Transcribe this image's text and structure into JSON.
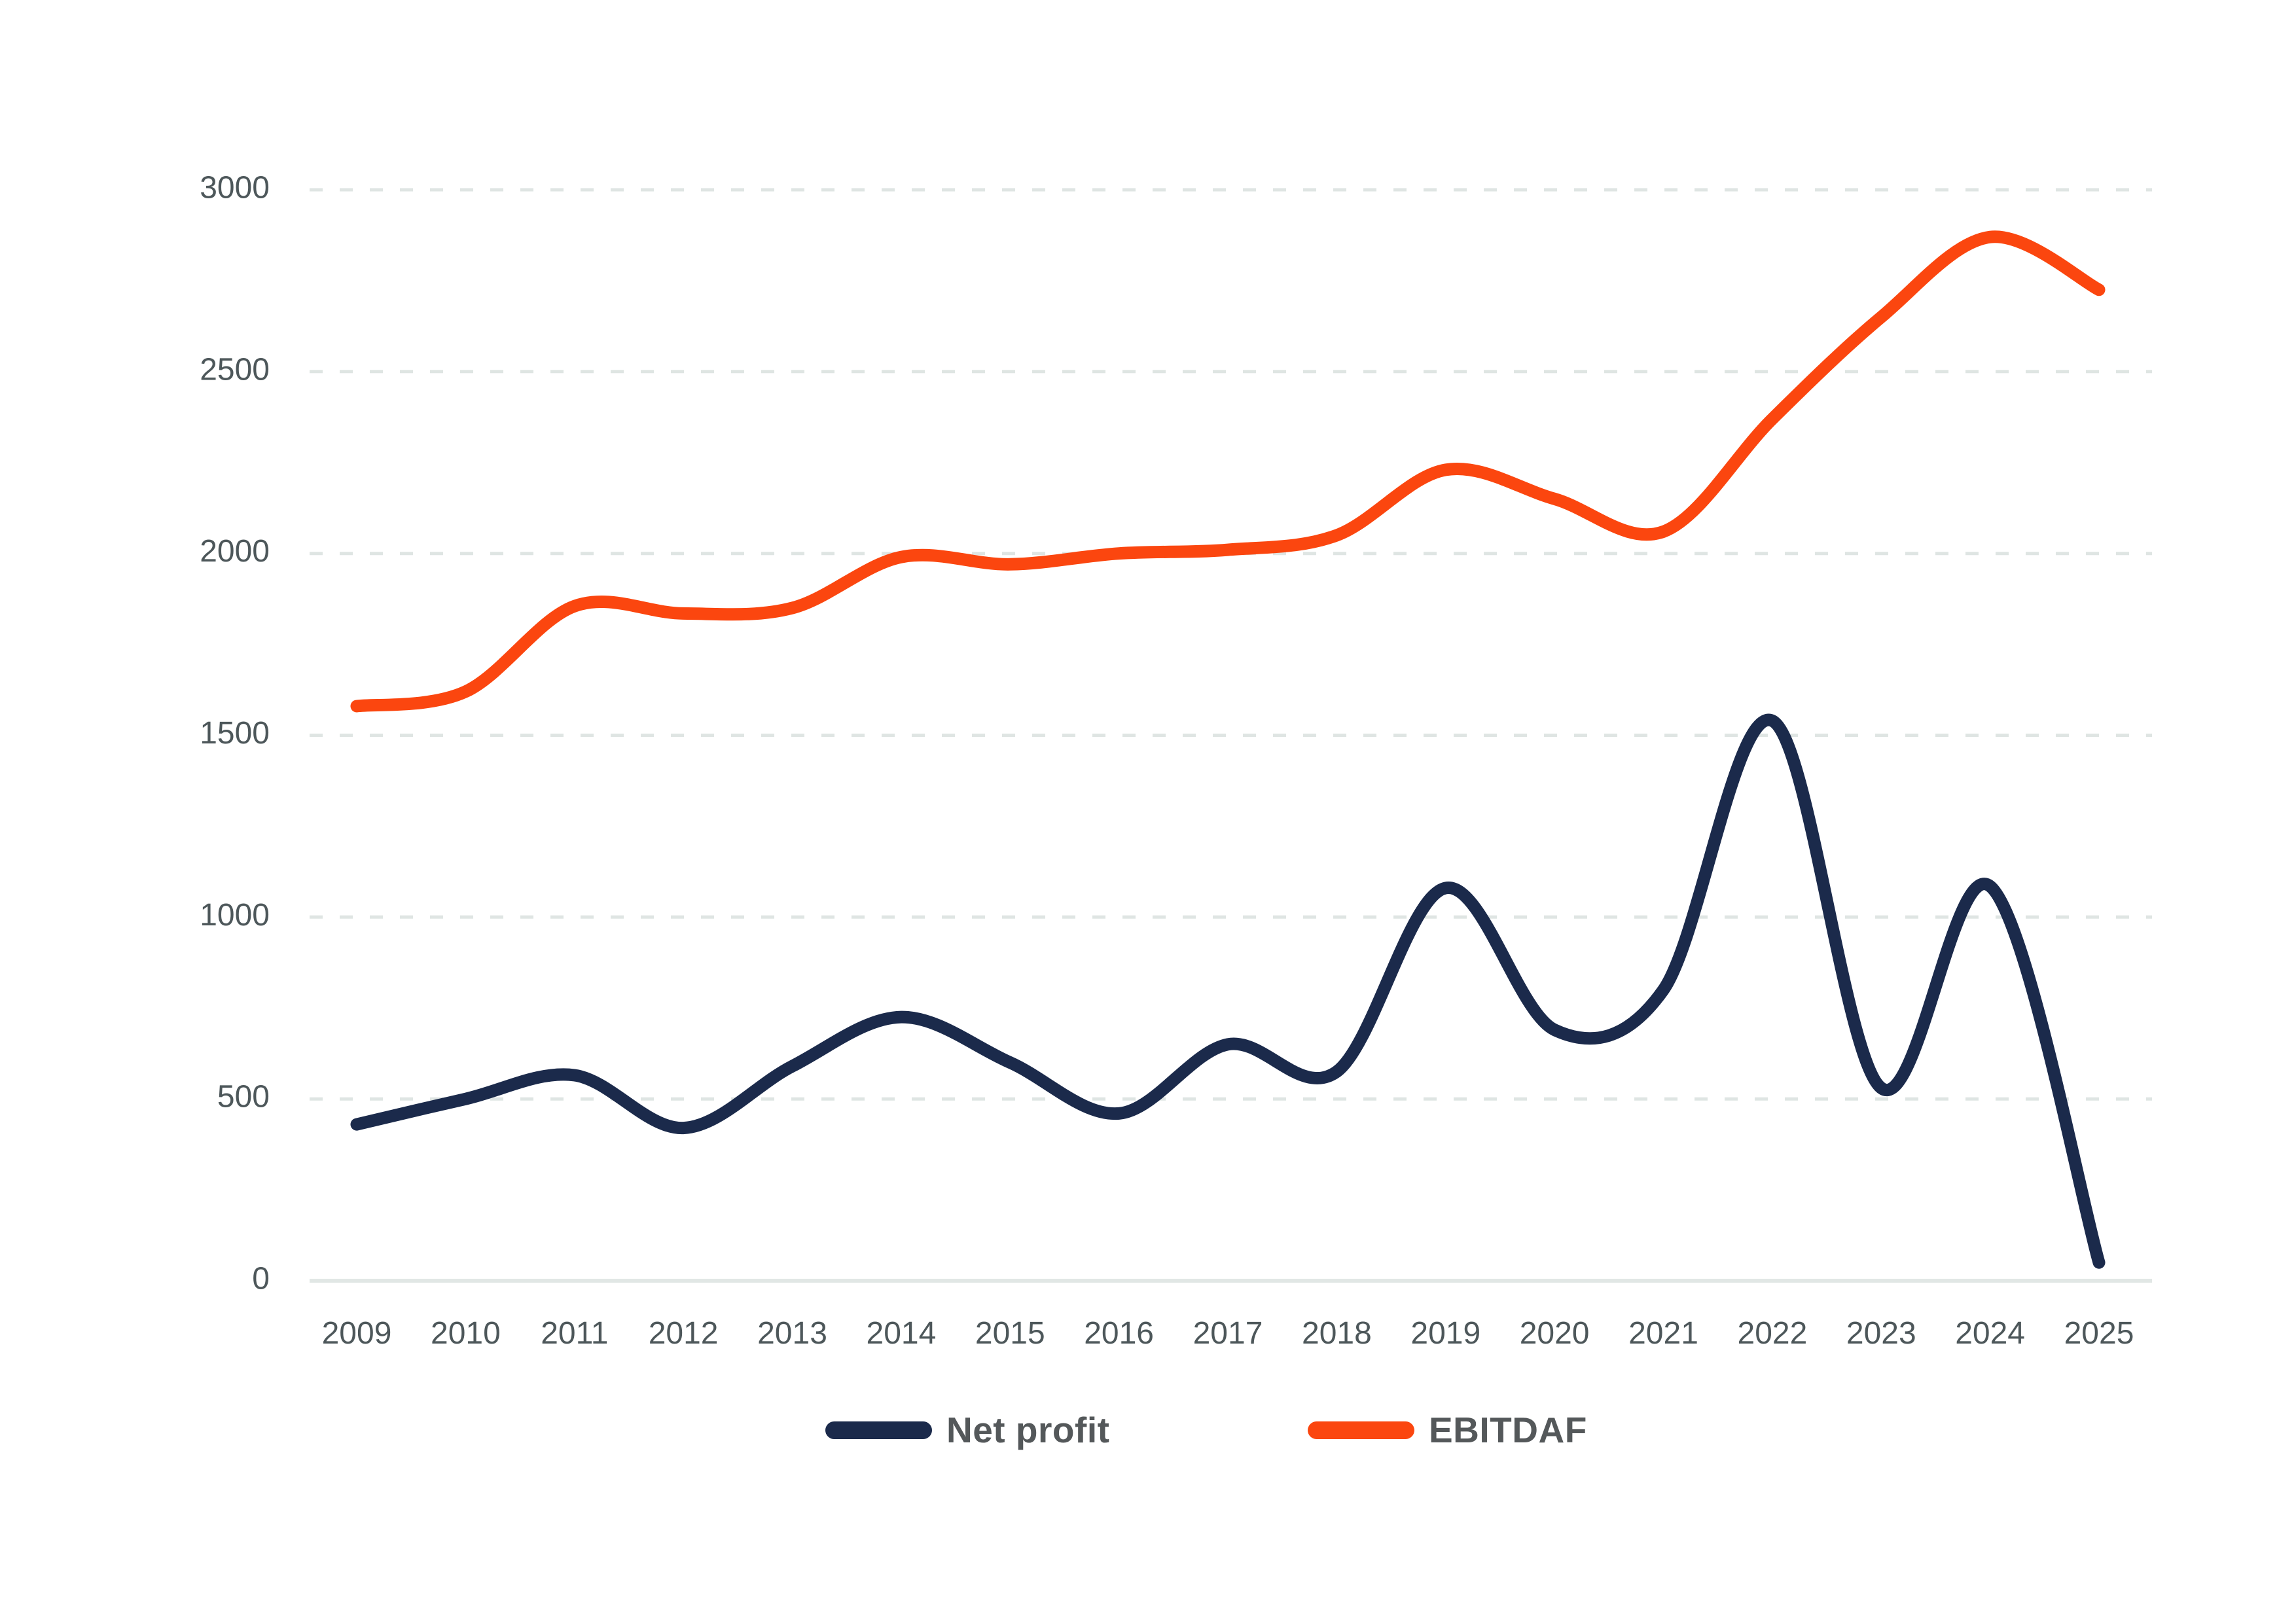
{
  "chart_data": {
    "type": "line",
    "title": "",
    "xlabel": "",
    "ylabel": "",
    "x": [
      2009,
      2010,
      2011,
      2012,
      2013,
      2014,
      2015,
      2016,
      2017,
      2018,
      2019,
      2020,
      2021,
      2022,
      2023,
      2024,
      2025
    ],
    "series": [
      {
        "name": "Net profit",
        "color": "#1B2A4B",
        "values": [
          430,
          500,
          565,
          420,
          590,
          725,
          600,
          460,
          650,
          575,
          1080,
          690,
          800,
          1540,
          530,
          1085,
          50
        ]
      },
      {
        "name": "EBITDAF",
        "color": "#FB460F",
        "values": [
          1580,
          1620,
          1855,
          1835,
          1850,
          1990,
          1970,
          2000,
          2010,
          2050,
          2230,
          2150,
          2060,
          2370,
          2650,
          2870,
          2725
        ]
      }
    ],
    "ylim": [
      0,
      3000
    ],
    "yticks": [
      0,
      500,
      1000,
      1500,
      2000,
      2500,
      3000
    ],
    "xticks": [
      "2009",
      "2010",
      "2011",
      "2012",
      "2013",
      "2014",
      "2015",
      "2016",
      "2017",
      "2018",
      "2019",
      "2020",
      "2021",
      "2022",
      "2023",
      "2024",
      "2025"
    ],
    "grid": "horizontal-dashed",
    "line_style": "smooth",
    "legend_position": "bottom-center"
  },
  "colors": {
    "background": "#FFFFFF",
    "net_profit": "#1B2A4B",
    "ebitdaf": "#FB460F",
    "tick_label": "#4D575A",
    "legend_label": "#54585A",
    "gridline": "#DFE5E3",
    "axis_line": "#E1E7E5"
  }
}
